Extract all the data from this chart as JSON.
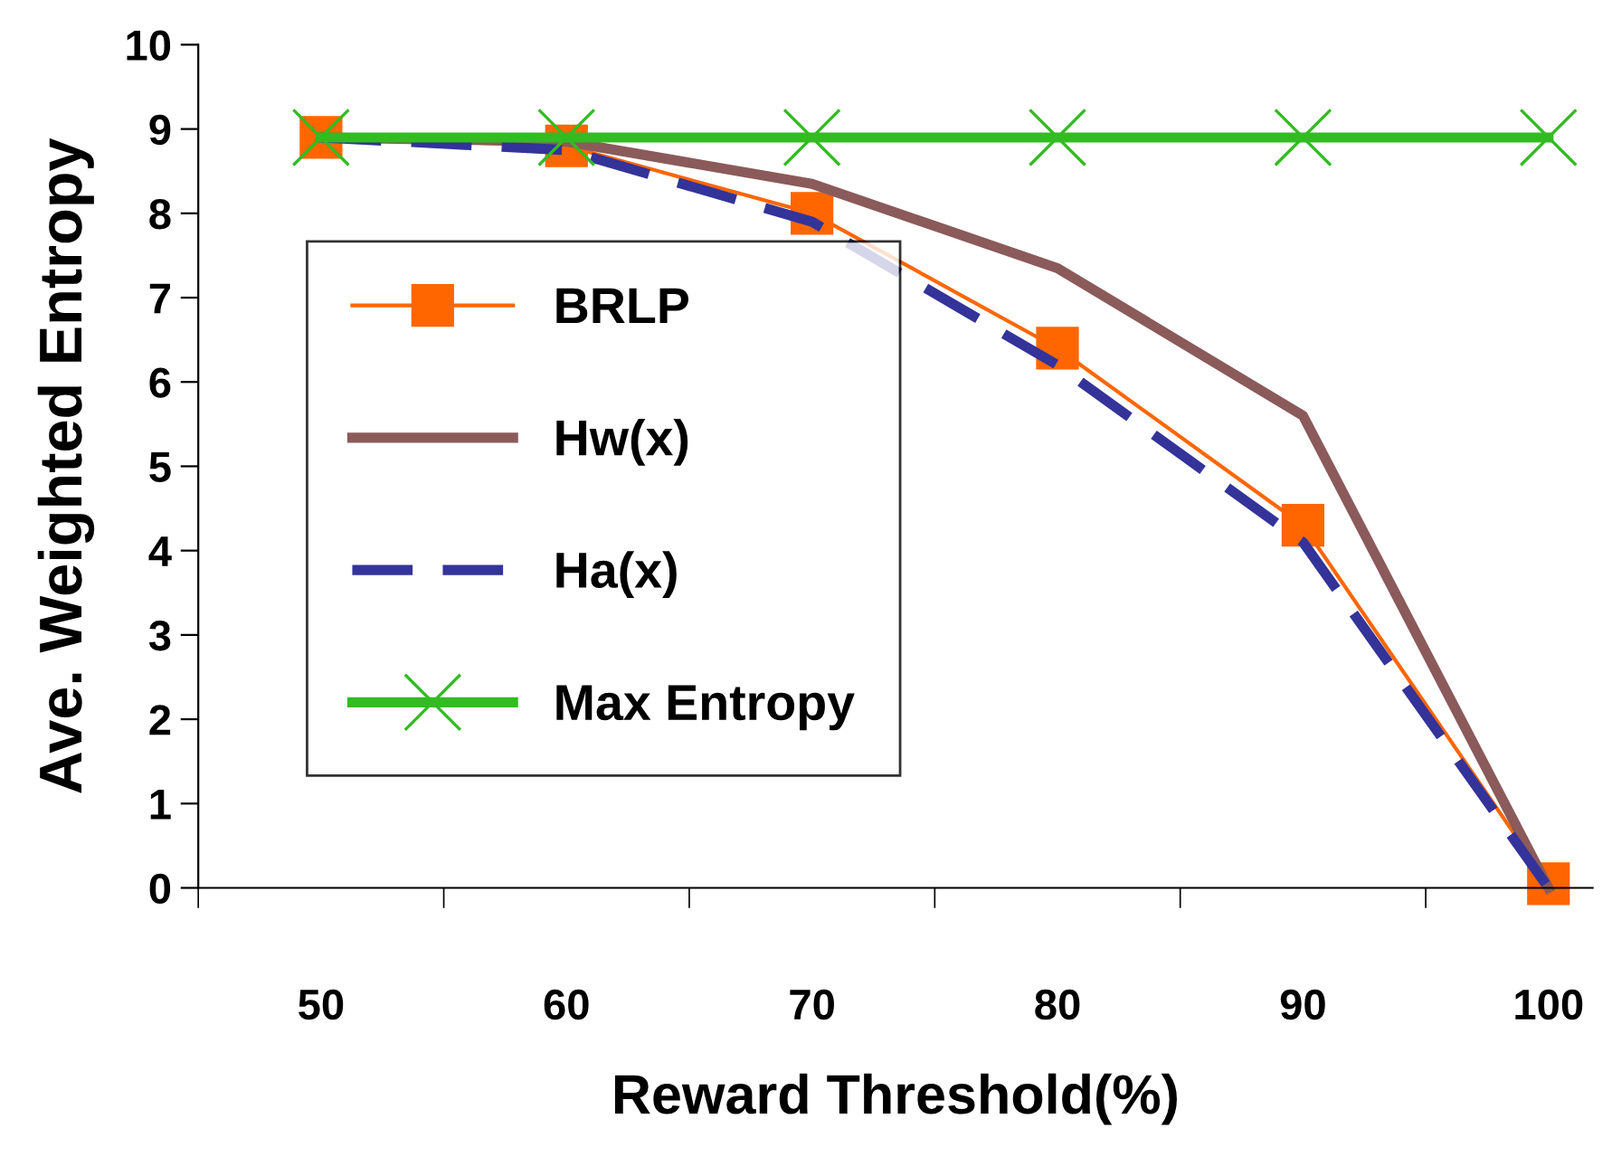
{
  "chart_data": {
    "type": "line",
    "xlabel": "Reward Threshold(%)",
    "ylabel": "Ave. Weighted Entropy",
    "categories": [
      "50",
      "60",
      "70",
      "80",
      "90",
      "100"
    ],
    "series": [
      {
        "name": "BRLP",
        "color": "#ff6600",
        "marker": "square",
        "line_style": "solid",
        "values": [
          8.9,
          8.8,
          8.0,
          6.4,
          4.3,
          0.05
        ]
      },
      {
        "name": "Hw(x)",
        "color": "#8b5a5a",
        "marker": "none",
        "line_style": "solid",
        "values": [
          8.9,
          8.85,
          8.35,
          7.35,
          5.6,
          0
        ]
      },
      {
        "name": "Ha(x)",
        "color": "#333399",
        "marker": "none",
        "line_style": "dashed",
        "values": [
          8.9,
          8.75,
          7.9,
          6.2,
          4.1,
          0
        ]
      },
      {
        "name": "Max Entropy",
        "color": "#33bb22",
        "marker": "cross",
        "line_style": "solid",
        "values": [
          8.9,
          8.9,
          8.9,
          8.9,
          8.9,
          8.9
        ]
      }
    ],
    "ylim": [
      0,
      10
    ],
    "yticks": [
      0,
      1,
      2,
      3,
      4,
      5,
      6,
      7,
      8,
      9,
      10
    ],
    "grid": false,
    "legend": "left"
  }
}
